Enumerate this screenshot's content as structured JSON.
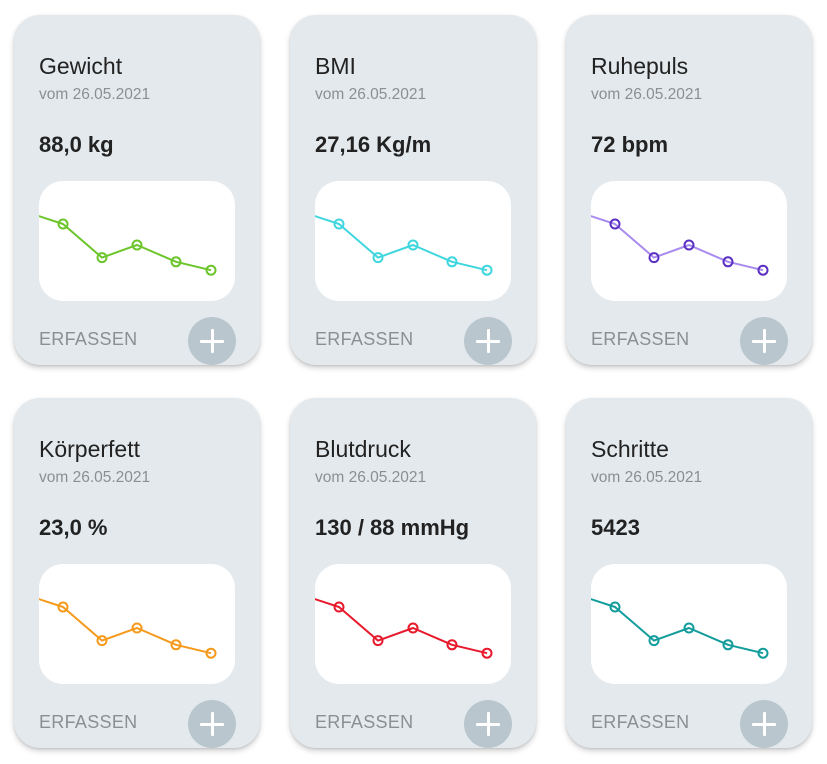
{
  "cards": [
    {
      "title": "Gewicht",
      "date": "vom 26.05.2021",
      "value": "88,0 kg",
      "action_label": "ERFASSEN",
      "add_icon": "plus-icon",
      "color": "#6cc52b",
      "trend": [
        95,
        90,
        74,
        80,
        72,
        68
      ]
    },
    {
      "title": "BMI",
      "date": "vom 26.05.2021",
      "value": "27,16 Kg/m",
      "action_label": "ERFASSEN",
      "add_icon": "plus-icon",
      "color": "#3fd6de",
      "trend": [
        95,
        90,
        74,
        80,
        72,
        68
      ]
    },
    {
      "title": "Ruhepuls",
      "date": "vom 26.05.2021",
      "value": "72 bpm",
      "action_label": "ERFASSEN",
      "add_icon": "plus-icon",
      "color": "#a98bf0",
      "point_color": "#5a2fc2",
      "trend": [
        95,
        90,
        74,
        80,
        72,
        68
      ]
    },
    {
      "title": "Körperfett",
      "date": "vom 26.05.2021",
      "value": "23,0 %",
      "action_label": "ERFASSEN",
      "add_icon": "plus-icon",
      "color": "#f59a1c",
      "trend": [
        95,
        90,
        74,
        80,
        72,
        68
      ]
    },
    {
      "title": "Blutdruck",
      "date": "vom 26.05.2021",
      "value": "130 / 88 mmHg",
      "action_label": "ERFASSEN",
      "add_icon": "plus-icon",
      "color": "#e8192c",
      "trend": [
        95,
        90,
        74,
        80,
        72,
        68
      ]
    },
    {
      "title": "Schritte",
      "date": "vom 26.05.2021",
      "value": "5423",
      "action_label": "ERFASSEN",
      "add_icon": "plus-icon",
      "color": "#139c9c",
      "trend": [
        95,
        90,
        74,
        80,
        72,
        68
      ]
    }
  ]
}
